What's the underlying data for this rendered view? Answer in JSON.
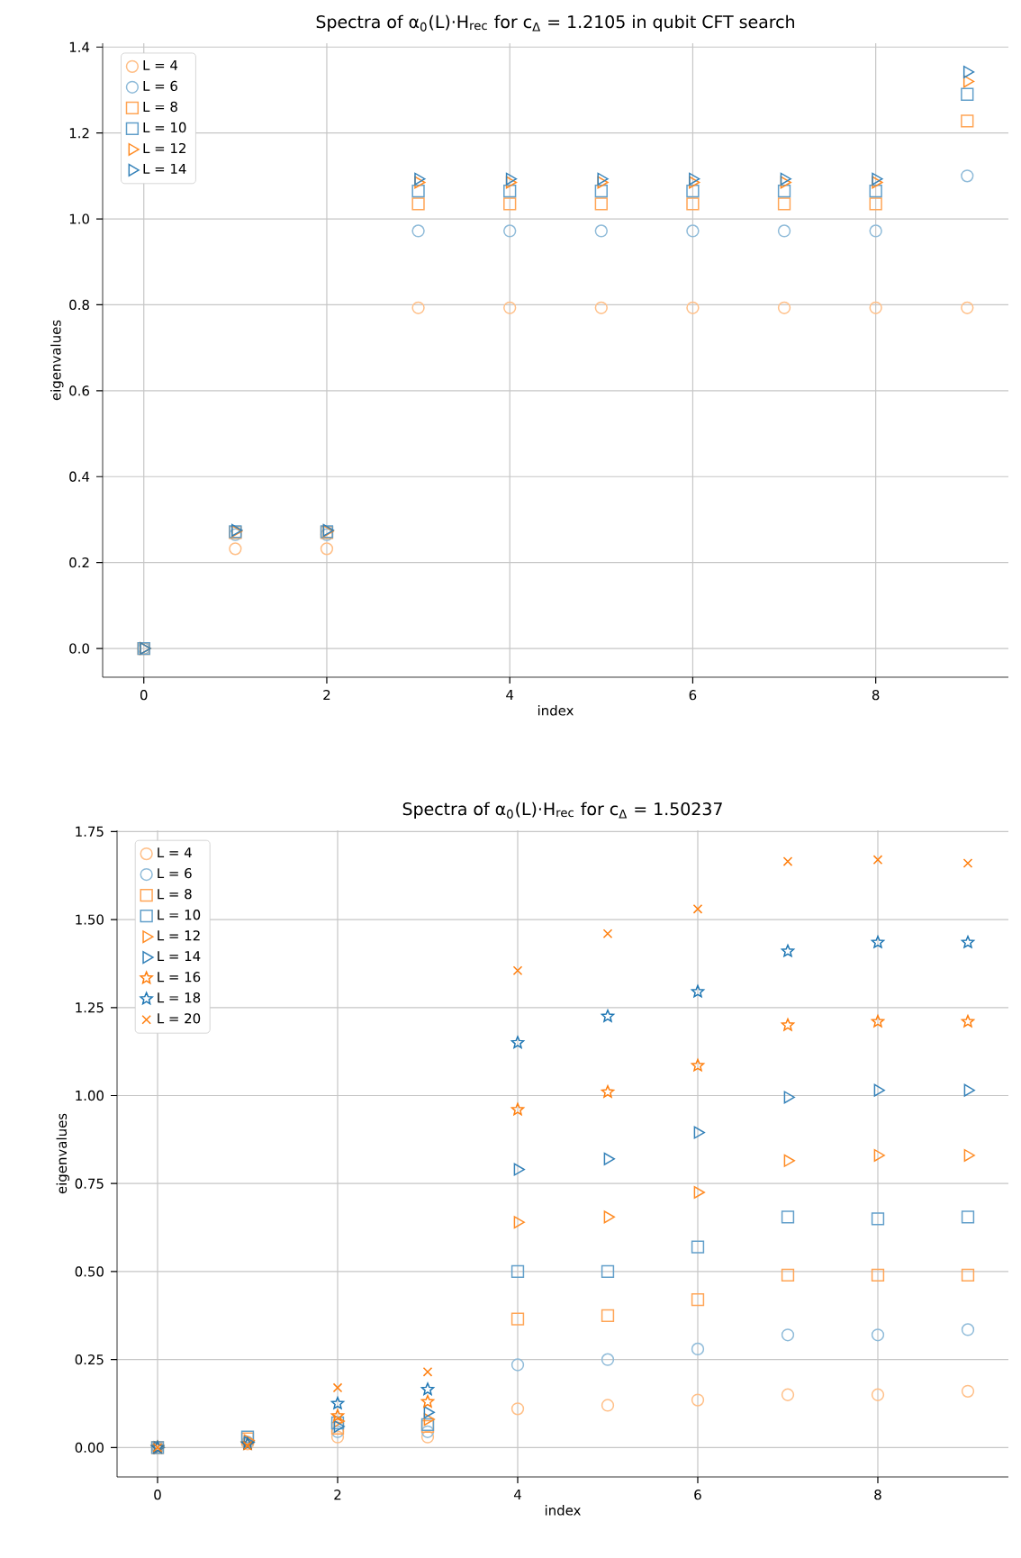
{
  "chart_data": [
    {
      "type": "scatter",
      "title": "Spectra of α$_{0}$(L)·H$_{rec}$ for c$_{Δ}$ = 1.2105 in qubit CFT search",
      "xlabel": "index",
      "ylabel": "eigenvalues",
      "x": [
        0,
        1,
        2,
        3,
        4,
        5,
        6,
        7,
        8,
        9
      ],
      "series": [
        {
          "name": "L = 4",
          "color": "#ffbf87",
          "marker": "circle",
          "values": [
            0,
            0.232,
            0.232,
            0.793,
            0.793,
            0.793,
            0.793,
            0.793,
            0.793,
            0.793
          ]
        },
        {
          "name": "L = 6",
          "color": "#8fbbd9",
          "marker": "circle",
          "values": [
            0,
            0.265,
            0.265,
            0.972,
            0.972,
            0.972,
            0.972,
            0.972,
            0.972,
            1.1
          ]
        },
        {
          "name": "L = 8",
          "color": "#ffa556",
          "marker": "square",
          "values": [
            0,
            0.27,
            0.27,
            1.035,
            1.035,
            1.035,
            1.035,
            1.035,
            1.035,
            1.228
          ]
        },
        {
          "name": "L = 10",
          "color": "#629fca",
          "marker": "square",
          "values": [
            0,
            0.272,
            0.272,
            1.065,
            1.065,
            1.065,
            1.065,
            1.065,
            1.065,
            1.29
          ]
        },
        {
          "name": "L = 12",
          "color": "#ff8c25",
          "marker": "triangle",
          "values": [
            0,
            0.273,
            0.273,
            1.085,
            1.085,
            1.085,
            1.085,
            1.085,
            1.085,
            1.32
          ]
        },
        {
          "name": "L = 14",
          "color": "#3582b9",
          "marker": "triangle",
          "values": [
            0,
            0.275,
            0.275,
            1.093,
            1.093,
            1.093,
            1.093,
            1.093,
            1.093,
            1.342
          ]
        }
      ],
      "xlim": [
        -0.45,
        9.45
      ],
      "ylim": [
        -0.067,
        1.409
      ],
      "xticks": [
        0,
        2,
        4,
        6,
        8
      ],
      "yticks": [
        {
          "value": 0,
          "label": "0.0"
        },
        {
          "value": 0.2,
          "label": "0.2"
        },
        {
          "value": 0.4,
          "label": "0.4"
        },
        {
          "value": 0.6,
          "label": "0.6"
        },
        {
          "value": 0.8,
          "label": "0.8"
        },
        {
          "value": 1.0,
          "label": "1.0"
        },
        {
          "value": 1.2,
          "label": "1.2"
        },
        {
          "value": 1.4,
          "label": "1.4"
        }
      ],
      "grid": true,
      "legend": "top left"
    },
    {
      "type": "scatter",
      "title": "Spectra of α$_{0}$(L)·H$_{rec}$ for c$_{Δ}$ = 1.50237",
      "xlabel": "index",
      "ylabel": "eigenvalues",
      "x": [
        0,
        1,
        2,
        3,
        4,
        5,
        6,
        7,
        8,
        9
      ],
      "series": [
        {
          "name": "L = 4",
          "color": "#ffbf87",
          "marker": "circle",
          "values": [
            0,
            0.01,
            0.03,
            0.03,
            0.11,
            0.12,
            0.135,
            0.15,
            0.15,
            0.16
          ]
        },
        {
          "name": "L = 6",
          "color": "#8fbbd9",
          "marker": "circle",
          "values": [
            0,
            0.015,
            0.045,
            0.045,
            0.235,
            0.25,
            0.28,
            0.32,
            0.32,
            0.335
          ]
        },
        {
          "name": "L = 8",
          "color": "#ffa556",
          "marker": "square",
          "values": [
            0,
            0.025,
            0.055,
            0.06,
            0.365,
            0.375,
            0.42,
            0.49,
            0.49,
            0.49
          ]
        },
        {
          "name": "L = 10",
          "color": "#629fca",
          "marker": "square",
          "values": [
            0,
            0.03,
            0.07,
            0.065,
            0.5,
            0.5,
            0.57,
            0.655,
            0.65,
            0.655
          ]
        },
        {
          "name": "L = 12",
          "color": "#ff8c25",
          "marker": "triangle",
          "values": [
            0,
            0.02,
            0.075,
            0.08,
            0.64,
            0.655,
            0.725,
            0.815,
            0.83,
            0.83
          ]
        },
        {
          "name": "L = 14",
          "color": "#3582b9",
          "marker": "triangle",
          "values": [
            0,
            0.015,
            0.06,
            0.1,
            0.79,
            0.82,
            0.895,
            0.995,
            1.015,
            1.015
          ]
        },
        {
          "name": "L = 16",
          "color": "#ff7f0e",
          "marker": "star",
          "values": [
            0,
            0.01,
            0.09,
            0.13,
            0.96,
            1.01,
            1.085,
            1.2,
            1.21,
            1.21
          ]
        },
        {
          "name": "L = 18",
          "color": "#1f77b4",
          "marker": "star",
          "values": [
            0,
            0.01,
            0.125,
            0.165,
            1.15,
            1.225,
            1.295,
            1.41,
            1.435,
            1.435
          ]
        },
        {
          "name": "L = 20",
          "color": "#ff7f0e",
          "marker": "cross",
          "values": [
            0,
            0.005,
            0.17,
            0.215,
            1.355,
            1.46,
            1.53,
            1.665,
            1.67,
            1.66
          ]
        }
      ],
      "xlim": [
        -0.45,
        9.45
      ],
      "ylim": [
        -0.0835,
        1.7535
      ],
      "xticks": [
        0,
        2,
        4,
        6,
        8
      ],
      "yticks": [
        {
          "value": 0,
          "label": "0.00"
        },
        {
          "value": 0.25,
          "label": "0.25"
        },
        {
          "value": 0.5,
          "label": "0.50"
        },
        {
          "value": 0.75,
          "label": "0.75"
        },
        {
          "value": 1.0,
          "label": "1.00"
        },
        {
          "value": 1.25,
          "label": "1.25"
        },
        {
          "value": 1.5,
          "label": "1.50"
        },
        {
          "value": 1.75,
          "label": "1.75"
        }
      ],
      "grid": true,
      "legend": "top left"
    }
  ]
}
